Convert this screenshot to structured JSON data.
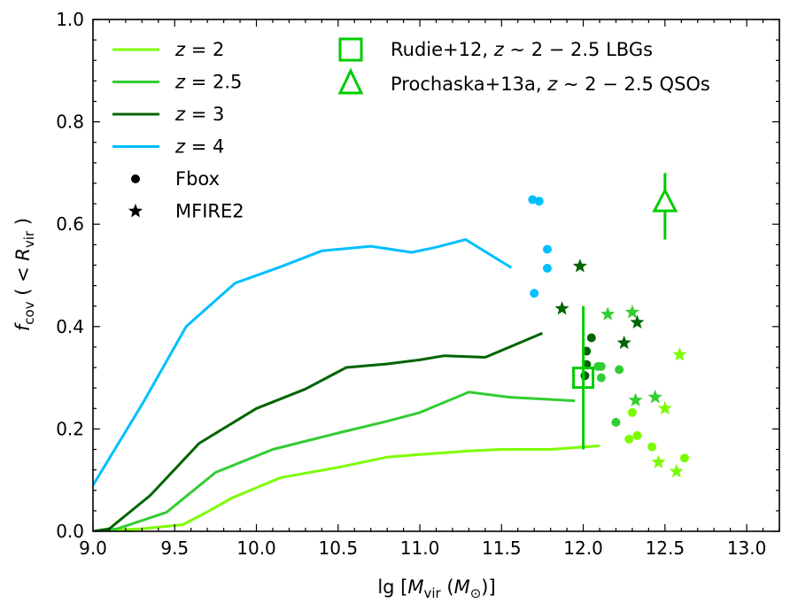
{
  "chart_data": {
    "type": "line",
    "xlabel": "lg [M_vir (M_⊙)]",
    "ylabel": "f_cov (< R_vir)",
    "xlim": [
      9.0,
      13.2
    ],
    "ylim": [
      0.0,
      1.0
    ],
    "xticks": [
      "9.0",
      "9.5",
      "10.0",
      "10.5",
      "11.0",
      "11.5",
      "12.0",
      "12.5",
      "13.0"
    ],
    "yticks": [
      "0.0",
      "0.2",
      "0.4",
      "0.6",
      "0.8",
      "1.0"
    ],
    "colors": {
      "z2": "#7cfc00",
      "z2_5": "#32cd32",
      "z3": "#006400",
      "z4": "#00bfff",
      "obs": "#00cc00"
    },
    "series": [
      {
        "name": "z = 2",
        "key": "z2",
        "x": [
          9.0,
          9.3,
          9.55,
          9.7,
          9.85,
          10.15,
          10.5,
          10.8,
          11.0,
          11.3,
          11.5,
          11.8,
          12.1
        ],
        "y": [
          0.0,
          0.005,
          0.013,
          0.038,
          0.065,
          0.105,
          0.125,
          0.145,
          0.15,
          0.157,
          0.16,
          0.16,
          0.167
        ]
      },
      {
        "name": "z = 2.5",
        "key": "z2_5",
        "x": [
          9.0,
          9.15,
          9.45,
          9.75,
          10.1,
          10.5,
          10.8,
          11.0,
          11.3,
          11.55,
          11.95
        ],
        "y": [
          0.0,
          0.005,
          0.037,
          0.115,
          0.16,
          0.192,
          0.215,
          0.232,
          0.272,
          0.262,
          0.255
        ]
      },
      {
        "name": "z = 3",
        "key": "z3",
        "x": [
          9.0,
          9.1,
          9.35,
          9.65,
          10.0,
          10.3,
          10.55,
          10.8,
          11.0,
          11.15,
          11.4,
          11.75
        ],
        "y": [
          0.0,
          0.005,
          0.07,
          0.172,
          0.24,
          0.278,
          0.32,
          0.327,
          0.335,
          0.343,
          0.34,
          0.387
        ]
      },
      {
        "name": "z = 4",
        "key": "z4",
        "x": [
          9.0,
          9.3,
          9.57,
          9.87,
          10.15,
          10.4,
          10.7,
          10.95,
          11.1,
          11.28,
          11.56
        ],
        "y": [
          0.09,
          0.248,
          0.4,
          0.485,
          0.517,
          0.548,
          0.557,
          0.545,
          0.555,
          0.57,
          0.515
        ]
      }
    ],
    "fbox_points": [
      {
        "key": "z4",
        "x": 11.69,
        "y": 0.648
      },
      {
        "key": "z4",
        "x": 11.73,
        "y": 0.645
      },
      {
        "key": "z4",
        "x": 11.78,
        "y": 0.551
      },
      {
        "key": "z4",
        "x": 11.78,
        "y": 0.514
      },
      {
        "key": "z4",
        "x": 11.7,
        "y": 0.465
      },
      {
        "key": "z3",
        "x": 12.05,
        "y": 0.378
      },
      {
        "key": "z3",
        "x": 12.02,
        "y": 0.352
      },
      {
        "key": "z3",
        "x": 12.02,
        "y": 0.326
      },
      {
        "key": "z3",
        "x": 12.01,
        "y": 0.304
      },
      {
        "key": "z2_5",
        "x": 12.09,
        "y": 0.322
      },
      {
        "key": "z2_5",
        "x": 12.11,
        "y": 0.322
      },
      {
        "key": "z2_5",
        "x": 12.22,
        "y": 0.316
      },
      {
        "key": "z2_5",
        "x": 12.11,
        "y": 0.3
      },
      {
        "key": "z2_5",
        "x": 12.2,
        "y": 0.213
      },
      {
        "key": "z2",
        "x": 12.3,
        "y": 0.232
      },
      {
        "key": "z2",
        "x": 12.33,
        "y": 0.187
      },
      {
        "key": "z2",
        "x": 12.28,
        "y": 0.18
      },
      {
        "key": "z2",
        "x": 12.42,
        "y": 0.165
      },
      {
        "key": "z2",
        "x": 12.62,
        "y": 0.143
      }
    ],
    "mfire2_points": [
      {
        "key": "z3",
        "x": 11.98,
        "y": 0.518
      },
      {
        "key": "z3",
        "x": 11.87,
        "y": 0.435
      },
      {
        "key": "z3",
        "x": 12.33,
        "y": 0.408
      },
      {
        "key": "z3",
        "x": 12.25,
        "y": 0.368
      },
      {
        "key": "z2_5",
        "x": 12.15,
        "y": 0.424
      },
      {
        "key": "z2_5",
        "x": 12.3,
        "y": 0.428
      },
      {
        "key": "z2_5",
        "x": 12.32,
        "y": 0.256
      },
      {
        "key": "z2_5",
        "x": 12.44,
        "y": 0.262
      },
      {
        "key": "z2",
        "x": 12.59,
        "y": 0.345
      },
      {
        "key": "z2",
        "x": 12.5,
        "y": 0.24
      },
      {
        "key": "z2",
        "x": 12.46,
        "y": 0.135
      },
      {
        "key": "z2",
        "x": 12.57,
        "y": 0.117
      }
    ],
    "observations": [
      {
        "name": "Rudie+12, z ~ 2 − 2.5 LBGs",
        "marker": "square",
        "x": 12.0,
        "y": 0.3,
        "yerr_low": 0.16,
        "yerr_high": 0.44
      },
      {
        "name": "Prochaska+13a, z ~ 2 − 2.5 QSOs",
        "marker": "triangle",
        "x": 12.5,
        "y": 0.64,
        "yerr_low": 0.57,
        "yerr_high": 0.7
      }
    ],
    "legend": {
      "placement": "top",
      "lines": [
        {
          "label_var": "z",
          "label_eq": " = 2",
          "key": "z2"
        },
        {
          "label_var": "z",
          "label_eq": " = 2.5",
          "key": "z2_5"
        },
        {
          "label_var": "z",
          "label_eq": " = 3",
          "key": "z3"
        },
        {
          "label_var": "z",
          "label_eq": " = 4",
          "key": "z4"
        }
      ],
      "markers": [
        {
          "label": "Fbox",
          "marker": "dot"
        },
        {
          "label": "MFIRE2",
          "marker": "star"
        }
      ],
      "obs": [
        {
          "prefix": "Rudie+12, ",
          "var": "z",
          "suffix": " ∼ 2 − 2.5 LBGs",
          "marker": "square"
        },
        {
          "prefix": "Prochaska+13a, ",
          "var": "z",
          "suffix": " ∼ 2 − 2.5 QSOs",
          "marker": "triangle"
        }
      ]
    }
  }
}
